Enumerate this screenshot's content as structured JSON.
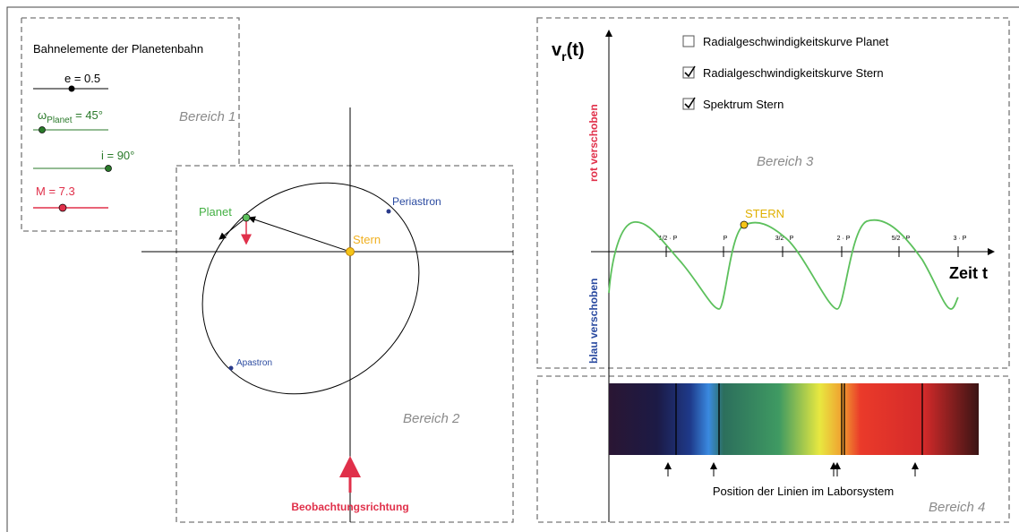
{
  "sliders": {
    "title": "Bahnelemente der Planetenbahn",
    "e": "e = 0.5",
    "omega": {
      "symbol": "ω",
      "subscript": "Planet",
      "text": " = 45°"
    },
    "i": "i = 90°",
    "M": "M = 7.3"
  },
  "regions": [
    "Bereich 1",
    "Bereich 2",
    "Bereich 3",
    "Bereich 4"
  ],
  "orbit": {
    "planet": "Planet",
    "periastron": "Periastron",
    "star": "Stern",
    "apastron": "Apastron",
    "direction": "Beobachtungsrichtung"
  },
  "rv_plot": {
    "axis_symbol": "v",
    "axis_subscript": "r",
    "axis_suffix": "(t)",
    "red_label": "rot verschoben",
    "blue_label": "blau verschoben",
    "x_label": "Zeit t",
    "star_label": "STERN",
    "ticks": [
      "1/2 · P",
      "P",
      "3/2 · P",
      "2 · P",
      "5/2 · P",
      "3 · P"
    ]
  },
  "checkboxes": [
    {
      "label": "Radialgeschwindigkeitskurve Planet",
      "checked": false
    },
    {
      "label": "Radialgeschwindigkeitskurve Stern",
      "checked": true
    },
    {
      "label": "Spektrum Stern",
      "checked": true
    }
  ],
  "spectrum": {
    "caption": "Position der Linien im Laborsystem"
  }
}
